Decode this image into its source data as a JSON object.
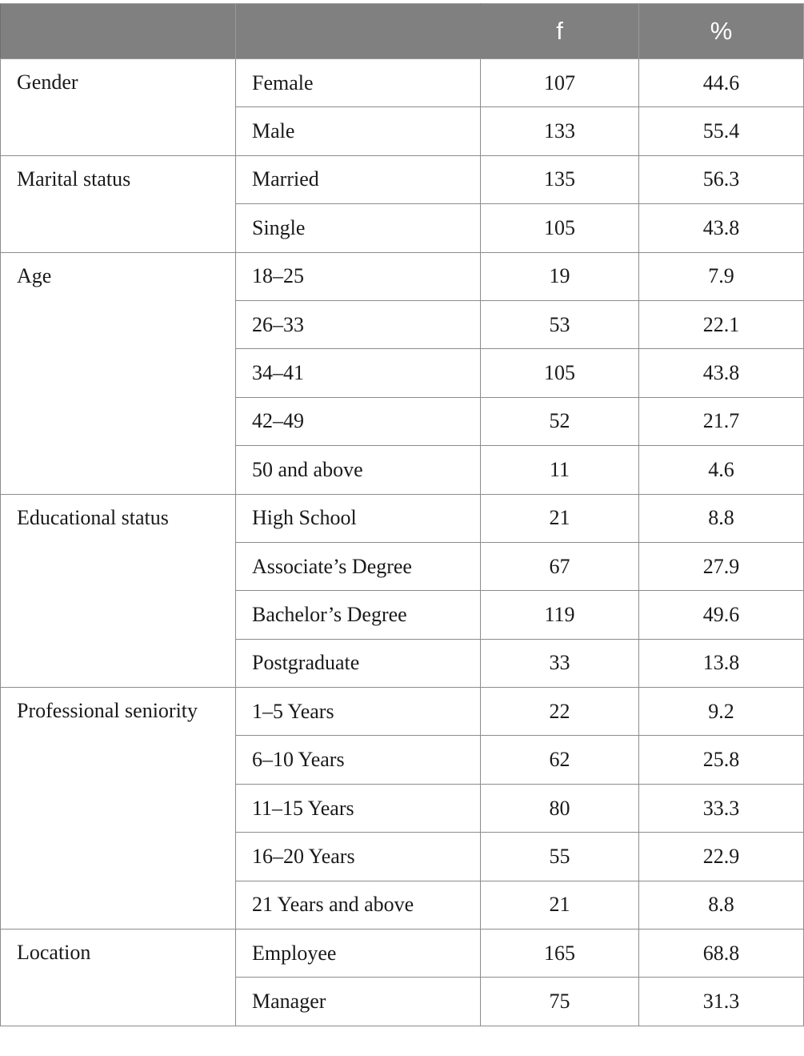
{
  "table": {
    "headers": [
      "",
      "",
      "f",
      "%"
    ],
    "groups": [
      {
        "label": "Gender",
        "rows": [
          {
            "category": "Female",
            "f": "107",
            "pct": "44.6"
          },
          {
            "category": "Male",
            "f": "133",
            "pct": "55.4"
          }
        ]
      },
      {
        "label": "Marital status",
        "rows": [
          {
            "category": "Married",
            "f": "135",
            "pct": "56.3"
          },
          {
            "category": "Single",
            "f": "105",
            "pct": "43.8"
          }
        ]
      },
      {
        "label": "Age",
        "rows": [
          {
            "category": "18–25",
            "f": "19",
            "pct": "7.9"
          },
          {
            "category": "26–33",
            "f": "53",
            "pct": "22.1"
          },
          {
            "category": "34–41",
            "f": "105",
            "pct": "43.8"
          },
          {
            "category": "42–49",
            "f": "52",
            "pct": "21.7"
          },
          {
            "category": "50 and above",
            "f": "11",
            "pct": "4.6"
          }
        ]
      },
      {
        "label": "Educational status",
        "rows": [
          {
            "category": "High School",
            "f": "21",
            "pct": "8.8"
          },
          {
            "category": "Associate’s Degree",
            "f": "67",
            "pct": "27.9"
          },
          {
            "category": "Bachelor’s Degree",
            "f": "119",
            "pct": "49.6"
          },
          {
            "category": "Postgraduate",
            "f": "33",
            "pct": "13.8"
          }
        ]
      },
      {
        "label": "Professional seniority",
        "rows": [
          {
            "category": "1–5 Years",
            "f": "22",
            "pct": "9.2"
          },
          {
            "category": "6–10 Years",
            "f": "62",
            "pct": "25.8"
          },
          {
            "category": "11–15 Years",
            "f": "80",
            "pct": "33.3"
          },
          {
            "category": "16–20 Years",
            "f": "55",
            "pct": "22.9"
          },
          {
            "category": "21 Years and above",
            "f": "21",
            "pct": "8.8"
          }
        ]
      },
      {
        "label": "Location",
        "rows": [
          {
            "category": "Employee",
            "f": "165",
            "pct": "68.8"
          },
          {
            "category": "Manager",
            "f": "75",
            "pct": "31.3"
          }
        ]
      }
    ]
  },
  "colors": {
    "header_bg": "#808080",
    "header_text": "#ffffff",
    "border": "#8c8c8c"
  }
}
